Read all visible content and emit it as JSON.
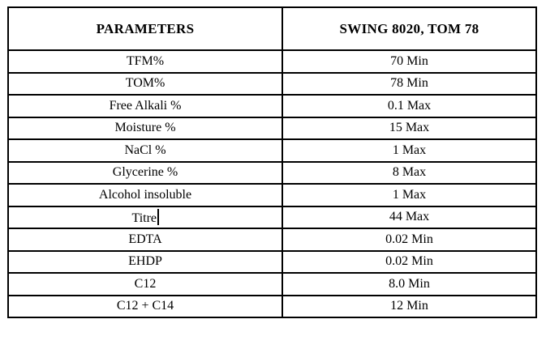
{
  "document": {
    "colors": {
      "background": "#ffffff",
      "border": "#000000",
      "text": "#000000"
    },
    "table": {
      "header": {
        "parameters": "PARAMETERS",
        "product": "SWING 8020, TOM 78"
      },
      "rows": [
        {
          "parameter": "TFM%",
          "value": "70 Min"
        },
        {
          "parameter": "TOM%",
          "value": "78 Min"
        },
        {
          "parameter": "Free Alkali %",
          "value": "0.1 Max"
        },
        {
          "parameter": "Moisture %",
          "value": "15 Max"
        },
        {
          "parameter": "NaCl %",
          "value": "1 Max"
        },
        {
          "parameter": "Glycerine %",
          "value": "8 Max"
        },
        {
          "parameter": "Alcohol insoluble",
          "value": "1 Max"
        },
        {
          "parameter": "Titre",
          "value": "44 Max",
          "caret": true
        },
        {
          "parameter": "EDTA",
          "value": "0.02 Min"
        },
        {
          "parameter": "EHDP",
          "value": "0.02 Min"
        },
        {
          "parameter": "C12",
          "value": "8.0 Min"
        },
        {
          "parameter": "C12 + C14",
          "value": "12 Min"
        }
      ]
    }
  }
}
